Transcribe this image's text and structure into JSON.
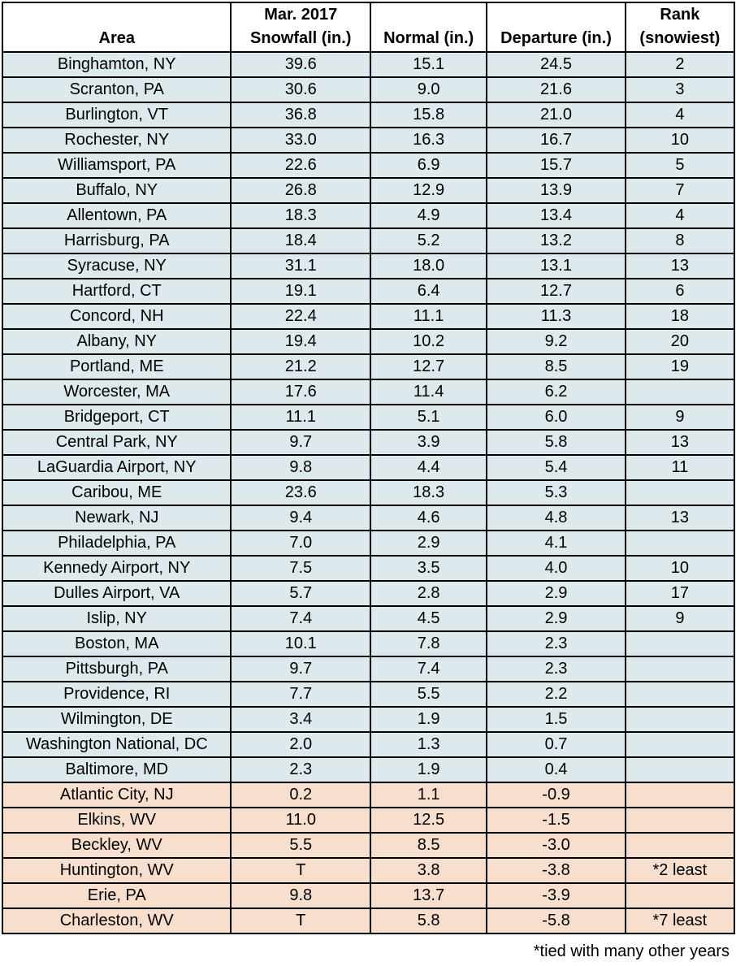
{
  "headers": {
    "area": "Area",
    "snowfall_line1": "Mar. 2017",
    "snowfall_line2": "Snowfall (in.)",
    "normal": "Normal (in.)",
    "departure": "Departure (in.)",
    "rank_line1": "Rank",
    "rank_line2": "(snowiest)"
  },
  "colors": {
    "above_normal_row": "#dee9ee",
    "below_normal_row": "#f8dfcd"
  },
  "rows": [
    {
      "area": "Binghamton, NY",
      "snowfall": "39.6",
      "normal": "15.1",
      "departure": "24.5",
      "rank": "2",
      "group": "pos"
    },
    {
      "area": "Scranton, PA",
      "snowfall": "30.6",
      "normal": "9.0",
      "departure": "21.6",
      "rank": "3",
      "group": "pos"
    },
    {
      "area": "Burlington, VT",
      "snowfall": "36.8",
      "normal": "15.8",
      "departure": "21.0",
      "rank": "4",
      "group": "pos"
    },
    {
      "area": "Rochester, NY",
      "snowfall": "33.0",
      "normal": "16.3",
      "departure": "16.7",
      "rank": "10",
      "group": "pos"
    },
    {
      "area": "Williamsport, PA",
      "snowfall": "22.6",
      "normal": "6.9",
      "departure": "15.7",
      "rank": "5",
      "group": "pos"
    },
    {
      "area": "Buffalo, NY",
      "snowfall": "26.8",
      "normal": "12.9",
      "departure": "13.9",
      "rank": "7",
      "group": "pos"
    },
    {
      "area": "Allentown, PA",
      "snowfall": "18.3",
      "normal": "4.9",
      "departure": "13.4",
      "rank": "4",
      "group": "pos"
    },
    {
      "area": "Harrisburg, PA",
      "snowfall": "18.4",
      "normal": "5.2",
      "departure": "13.2",
      "rank": "8",
      "group": "pos"
    },
    {
      "area": "Syracuse, NY",
      "snowfall": "31.1",
      "normal": "18.0",
      "departure": "13.1",
      "rank": "13",
      "group": "pos"
    },
    {
      "area": "Hartford, CT",
      "snowfall": "19.1",
      "normal": "6.4",
      "departure": "12.7",
      "rank": "6",
      "group": "pos"
    },
    {
      "area": "Concord, NH",
      "snowfall": "22.4",
      "normal": "11.1",
      "departure": "11.3",
      "rank": "18",
      "group": "pos"
    },
    {
      "area": "Albany, NY",
      "snowfall": "19.4",
      "normal": "10.2",
      "departure": "9.2",
      "rank": "20",
      "group": "pos"
    },
    {
      "area": "Portland, ME",
      "snowfall": "21.2",
      "normal": "12.7",
      "departure": "8.5",
      "rank": "19",
      "group": "pos"
    },
    {
      "area": "Worcester, MA",
      "snowfall": "17.6",
      "normal": "11.4",
      "departure": "6.2",
      "rank": "",
      "group": "pos"
    },
    {
      "area": "Bridgeport, CT",
      "snowfall": "11.1",
      "normal": "5.1",
      "departure": "6.0",
      "rank": "9",
      "group": "pos"
    },
    {
      "area": "Central Park, NY",
      "snowfall": "9.7",
      "normal": "3.9",
      "departure": "5.8",
      "rank": "13",
      "group": "pos"
    },
    {
      "area": "LaGuardia Airport, NY",
      "snowfall": "9.8",
      "normal": "4.4",
      "departure": "5.4",
      "rank": "11",
      "group": "pos"
    },
    {
      "area": "Caribou, ME",
      "snowfall": "23.6",
      "normal": "18.3",
      "departure": "5.3",
      "rank": "",
      "group": "pos"
    },
    {
      "area": "Newark, NJ",
      "snowfall": "9.4",
      "normal": "4.6",
      "departure": "4.8",
      "rank": "13",
      "group": "pos"
    },
    {
      "area": "Philadelphia, PA",
      "snowfall": "7.0",
      "normal": "2.9",
      "departure": "4.1",
      "rank": "",
      "group": "pos"
    },
    {
      "area": "Kennedy Airport, NY",
      "snowfall": "7.5",
      "normal": "3.5",
      "departure": "4.0",
      "rank": "10",
      "group": "pos"
    },
    {
      "area": "Dulles Airport, VA",
      "snowfall": "5.7",
      "normal": "2.8",
      "departure": "2.9",
      "rank": "17",
      "group": "pos"
    },
    {
      "area": "Islip, NY",
      "snowfall": "7.4",
      "normal": "4.5",
      "departure": "2.9",
      "rank": "9",
      "group": "pos"
    },
    {
      "area": "Boston, MA",
      "snowfall": "10.1",
      "normal": "7.8",
      "departure": "2.3",
      "rank": "",
      "group": "pos"
    },
    {
      "area": "Pittsburgh, PA",
      "snowfall": "9.7",
      "normal": "7.4",
      "departure": "2.3",
      "rank": "",
      "group": "pos"
    },
    {
      "area": "Providence, RI",
      "snowfall": "7.7",
      "normal": "5.5",
      "departure": "2.2",
      "rank": "",
      "group": "pos"
    },
    {
      "area": "Wilmington, DE",
      "snowfall": "3.4",
      "normal": "1.9",
      "departure": "1.5",
      "rank": "",
      "group": "pos"
    },
    {
      "area": "Washington National, DC",
      "snowfall": "2.0",
      "normal": "1.3",
      "departure": "0.7",
      "rank": "",
      "group": "pos"
    },
    {
      "area": "Baltimore, MD",
      "snowfall": "2.3",
      "normal": "1.9",
      "departure": "0.4",
      "rank": "",
      "group": "pos"
    },
    {
      "area": "Atlantic City, NJ",
      "snowfall": "0.2",
      "normal": "1.1",
      "departure": "-0.9",
      "rank": "",
      "group": "neg"
    },
    {
      "area": "Elkins, WV",
      "snowfall": "11.0",
      "normal": "12.5",
      "departure": "-1.5",
      "rank": "",
      "group": "neg"
    },
    {
      "area": "Beckley, WV",
      "snowfall": "5.5",
      "normal": "8.5",
      "departure": "-3.0",
      "rank": "",
      "group": "neg"
    },
    {
      "area": "Huntington, WV",
      "snowfall": "T",
      "normal": "3.8",
      "departure": "-3.8",
      "rank": "*2 least",
      "group": "neg"
    },
    {
      "area": "Erie, PA",
      "snowfall": "9.8",
      "normal": "13.7",
      "departure": "-3.9",
      "rank": "",
      "group": "neg"
    },
    {
      "area": "Charleston, WV",
      "snowfall": "T",
      "normal": "5.8",
      "departure": "-5.8",
      "rank": "*7 least",
      "group": "neg"
    }
  ],
  "footnote": "*tied with many other years"
}
